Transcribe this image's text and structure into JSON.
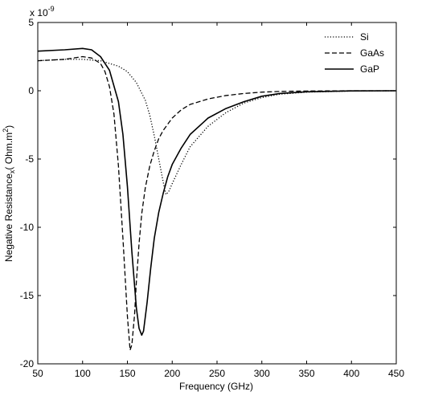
{
  "chart_data": {
    "type": "line",
    "title": "",
    "xlabel": "Frequency (GHz)",
    "ylabel_main": "Negative Resistance",
    "ylabel_sub": "x",
    "ylabel_unit": "( Ohm.m",
    "ylabel_sup": "2",
    "ylabel_close": ")",
    "exponent_base": "x 10",
    "exponent_power": "-9",
    "xlim": [
      50,
      450
    ],
    "ylim": [
      -20,
      5
    ],
    "xticks": [
      50,
      100,
      150,
      200,
      250,
      300,
      350,
      400,
      450
    ],
    "yticks": [
      5,
      0,
      -5,
      -10,
      -15,
      -20
    ],
    "xtick_labels": [
      "50",
      "100",
      "150",
      "200",
      "250",
      "300",
      "350",
      "400",
      "450"
    ],
    "ytick_labels": [
      "5",
      "0",
      "-5",
      "-10",
      "-15",
      "-20"
    ],
    "grid": false,
    "legend_position": "top-right",
    "series": [
      {
        "name": "Si",
        "style": "dotted",
        "color": "#000000",
        "x": [
          50,
          80,
          100,
          120,
          140,
          150,
          160,
          170,
          175,
          180,
          185,
          190,
          193,
          196,
          200,
          210,
          220,
          240,
          260,
          280,
          300,
          320,
          350,
          400,
          450
        ],
        "y": [
          2.2,
          2.3,
          2.3,
          2.2,
          1.8,
          1.4,
          0.6,
          -0.7,
          -1.8,
          -3.3,
          -5.0,
          -6.7,
          -7.6,
          -7.4,
          -6.8,
          -5.4,
          -4.1,
          -2.6,
          -1.6,
          -0.9,
          -0.5,
          -0.25,
          -0.1,
          -0.02,
          0.0
        ]
      },
      {
        "name": "GaAs",
        "style": "dashed",
        "color": "#000000",
        "x": [
          50,
          80,
          100,
          110,
          120,
          125,
          130,
          135,
          140,
          145,
          150,
          153,
          155,
          158,
          160,
          163,
          166,
          170,
          175,
          180,
          185,
          190,
          200,
          210,
          220,
          240,
          260,
          280,
          300,
          320,
          350,
          400,
          450
        ],
        "y": [
          2.2,
          2.3,
          2.5,
          2.4,
          2.0,
          1.4,
          0.3,
          -1.7,
          -5.5,
          -10.8,
          -16.5,
          -19.0,
          -18.6,
          -16.4,
          -14.0,
          -11.2,
          -9.0,
          -7.1,
          -5.5,
          -4.4,
          -3.5,
          -2.9,
          -2.0,
          -1.4,
          -1.0,
          -0.6,
          -0.35,
          -0.2,
          -0.1,
          -0.05,
          -0.02,
          0.0,
          0.0
        ]
      },
      {
        "name": "GaP",
        "style": "solid",
        "color": "#000000",
        "x": [
          50,
          80,
          100,
          110,
          120,
          130,
          140,
          145,
          150,
          155,
          160,
          163,
          166,
          168,
          172,
          176,
          180,
          185,
          190,
          195,
          200,
          210,
          220,
          240,
          260,
          280,
          300,
          320,
          350,
          400,
          450
        ],
        "y": [
          2.9,
          3.0,
          3.1,
          3.0,
          2.5,
          1.5,
          -0.8,
          -3.2,
          -7.0,
          -11.8,
          -15.9,
          -17.4,
          -17.9,
          -17.6,
          -15.5,
          -13.0,
          -10.8,
          -8.9,
          -7.5,
          -6.3,
          -5.4,
          -4.2,
          -3.2,
          -2.0,
          -1.3,
          -0.8,
          -0.4,
          -0.2,
          -0.08,
          -0.01,
          0.0
        ]
      }
    ]
  }
}
